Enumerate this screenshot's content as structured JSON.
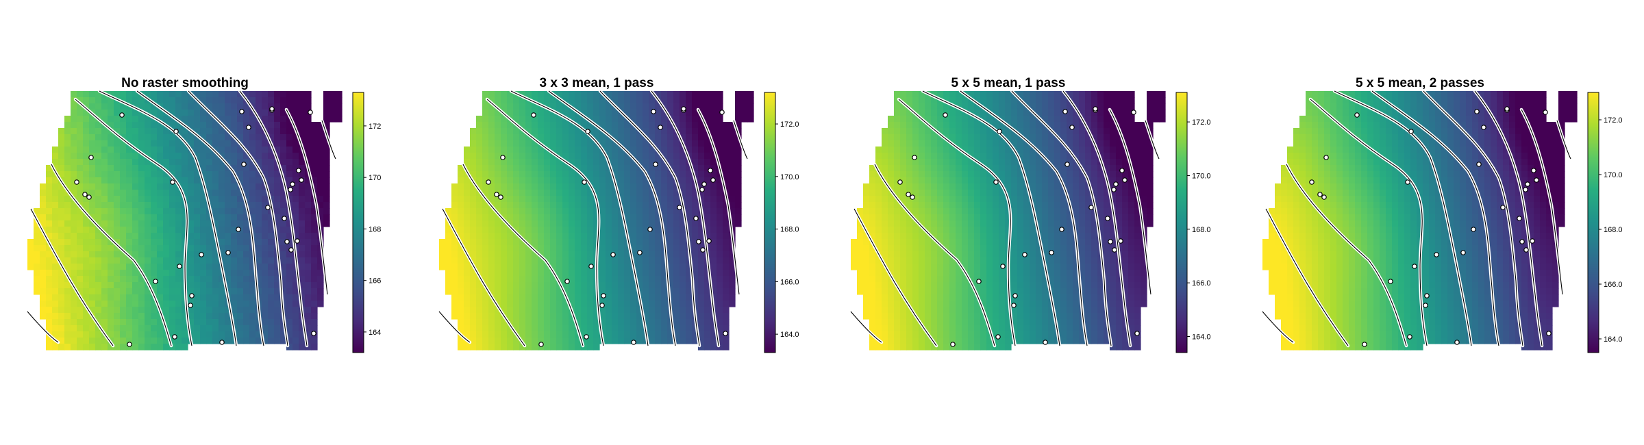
{
  "figure": {
    "panels": [
      {
        "title": "No raster smoothing",
        "smoothing": 0
      },
      {
        "title": "3 x 3 mean, 1 pass",
        "smoothing": 1
      },
      {
        "title": "5 x 5 mean, 1 pass",
        "smoothing": 2
      },
      {
        "title": "5 x 5 mean, 2 passes",
        "smoothing": 3
      }
    ]
  },
  "chart_data": [
    {
      "type": "heatmap",
      "title": "No raster smoothing",
      "colormap": "viridis",
      "colorbar": {
        "range": [
          163.2,
          173.3
        ],
        "ticks": [
          164,
          166,
          168,
          170,
          172
        ],
        "tick_labels": [
          "164",
          "166",
          "168",
          "170",
          "172"
        ]
      },
      "contour_levels": [
        165,
        166,
        167,
        168,
        169,
        170,
        171,
        172,
        173
      ],
      "sample_points": 30
    },
    {
      "type": "heatmap",
      "title": "3 x 3 mean, 1 pass",
      "colormap": "viridis",
      "colorbar": {
        "range": [
          163.3,
          173.2
        ],
        "ticks": [
          164,
          166,
          168,
          170,
          172
        ],
        "tick_labels": [
          "164.0",
          "166.0",
          "168.0",
          "170.0",
          "172.0"
        ]
      },
      "contour_levels": [
        165,
        166,
        167,
        168,
        169,
        170,
        171,
        172,
        173
      ],
      "sample_points": 30
    },
    {
      "type": "heatmap",
      "title": "5 x 5 mean, 1 pass",
      "colormap": "viridis",
      "colorbar": {
        "range": [
          163.4,
          173.1
        ],
        "ticks": [
          164,
          166,
          168,
          170,
          172
        ],
        "tick_labels": [
          "164.0",
          "166.0",
          "168.0",
          "170.0",
          "172.0"
        ]
      },
      "contour_levels": [
        165,
        166,
        167,
        168,
        169,
        170,
        171,
        172,
        173
      ],
      "sample_points": 30
    },
    {
      "type": "heatmap",
      "title": "5 x 5 mean, 2 passes",
      "colormap": "viridis",
      "colorbar": {
        "range": [
          163.5,
          173.0
        ],
        "ticks": [
          164,
          166,
          168,
          170,
          172
        ],
        "tick_labels": [
          "164.0",
          "166.0",
          "168.0",
          "170.0",
          "172.0"
        ]
      },
      "contour_levels": [
        165,
        166,
        167,
        168,
        169,
        170,
        171,
        172,
        173
      ],
      "sample_points": 30
    }
  ]
}
